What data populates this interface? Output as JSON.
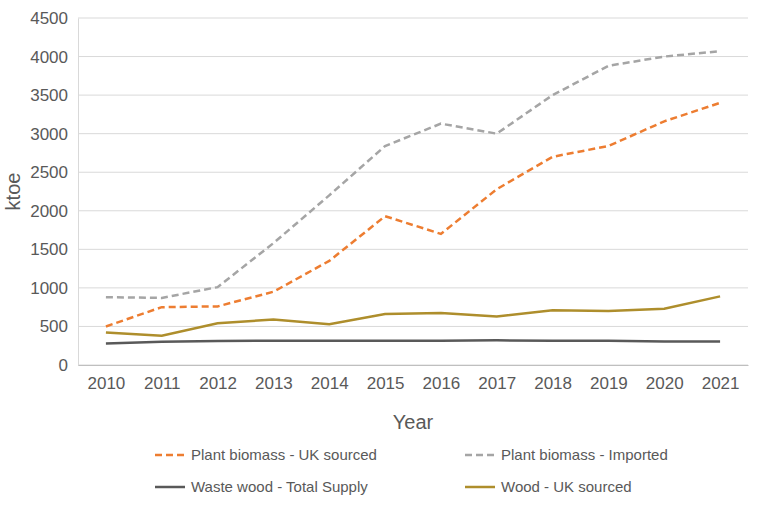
{
  "chart_data": {
    "type": "line",
    "x_label": "Year",
    "y_label": "ktoe",
    "categories": [
      "2010",
      "2011",
      "2012",
      "2013",
      "2014",
      "2015",
      "2016",
      "2017",
      "2018",
      "2019",
      "2020",
      "2021"
    ],
    "series": [
      {
        "name": "Plant biomass - UK sourced",
        "color": "#ed7d31",
        "line_style": "dashed",
        "values": [
          500,
          750,
          760,
          950,
          1350,
          1930,
          1700,
          2280,
          2700,
          2840,
          3160,
          3400
        ]
      },
      {
        "name": "Plant biomass - Imported",
        "color": "#a5a5a5",
        "line_style": "dashed",
        "values": [
          880,
          870,
          1010,
          1580,
          2200,
          2840,
          3130,
          3000,
          3500,
          3880,
          4000,
          4070
        ]
      },
      {
        "name": "Waste wood - Total Supply",
        "color": "#595959",
        "line_style": "solid",
        "values": [
          280,
          300,
          310,
          315,
          315,
          315,
          315,
          320,
          315,
          315,
          305,
          305
        ]
      },
      {
        "name": "Wood -  UK sourced",
        "color": "#ae8e2c",
        "line_style": "solid",
        "values": [
          420,
          380,
          540,
          590,
          530,
          660,
          675,
          630,
          710,
          700,
          730,
          890
        ]
      }
    ],
    "ylim": [
      0,
      4500
    ],
    "yticks": [
      0,
      500,
      1000,
      1500,
      2000,
      2500,
      3000,
      3500,
      4000,
      4500
    ],
    "grid": true,
    "legend": "bottom"
  }
}
